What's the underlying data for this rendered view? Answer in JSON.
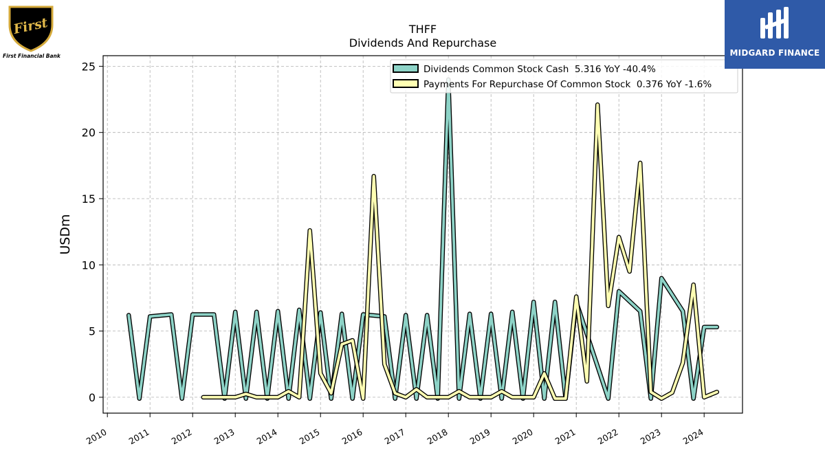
{
  "logos": {
    "left": {
      "mark_text": "First",
      "caption": "First Financial Bank"
    },
    "right": {
      "brand": "MIDGARD FINANCE",
      "icon": "midgard-monogram-icon"
    }
  },
  "chart_data": {
    "type": "line",
    "title": "THFF",
    "subtitle": "Dividends And Repurchase",
    "xlabel": "",
    "ylabel": "USDm",
    "xlim": [
      2009.9,
      2024.9
    ],
    "ylim": [
      -1.2,
      25.8
    ],
    "yticks": [
      0,
      5,
      10,
      15,
      20,
      25
    ],
    "xticks": [
      "2010",
      "2011",
      "2012",
      "2013",
      "2014",
      "2015",
      "2016",
      "2017",
      "2018",
      "2019",
      "2020",
      "2021",
      "2022",
      "2023",
      "2024"
    ],
    "grid": true,
    "legend_position": "top-right",
    "series": [
      {
        "name": "Dividends Common Stock Cash  5.316 YoY -40.4%",
        "color": "#8dd3c7",
        "x": [
          2010.5,
          2010.75,
          2011.0,
          2011.5,
          2011.75,
          2012.0,
          2012.5,
          2012.75,
          2013.0,
          2013.25,
          2013.5,
          2013.75,
          2014.0,
          2014.25,
          2014.5,
          2014.75,
          2015.0,
          2015.25,
          2015.5,
          2015.75,
          2016.0,
          2016.5,
          2016.75,
          2017.0,
          2017.25,
          2017.5,
          2017.75,
          2018.0,
          2018.25,
          2018.5,
          2018.75,
          2019.0,
          2019.25,
          2019.5,
          2019.75,
          2020.0,
          2020.25,
          2020.5,
          2020.75,
          2021.0,
          2021.75,
          2022.0,
          2022.5,
          2022.75,
          2023.0,
          2023.5,
          2023.75,
          2024.0,
          2024.3
        ],
        "y": [
          6.2,
          -0.1,
          6.1,
          6.25,
          -0.1,
          6.25,
          6.25,
          -0.1,
          6.45,
          -0.1,
          6.45,
          -0.1,
          6.5,
          -0.1,
          6.6,
          -0.1,
          6.4,
          -0.1,
          6.3,
          -0.1,
          6.25,
          6.1,
          -0.1,
          6.2,
          -0.1,
          6.2,
          -0.1,
          24.0,
          -0.1,
          6.3,
          -0.1,
          6.3,
          -0.1,
          6.45,
          -0.1,
          7.2,
          -0.1,
          7.2,
          -0.1,
          7.2,
          -0.1,
          8.0,
          6.5,
          -0.1,
          9.0,
          6.5,
          -0.1,
          5.3,
          5.3
        ]
      },
      {
        "name": "Payments For Repurchase Of Common Stock  0.376 YoY -1.6%",
        "color": "#ffffb3",
        "x": [
          2012.25,
          2013.0,
          2013.25,
          2013.5,
          2014.0,
          2014.25,
          2014.5,
          2014.75,
          2015.0,
          2015.25,
          2015.5,
          2015.75,
          2016.0,
          2016.25,
          2016.5,
          2016.75,
          2017.0,
          2017.25,
          2017.5,
          2018.0,
          2018.25,
          2018.5,
          2019.0,
          2019.25,
          2019.5,
          2020.0,
          2020.25,
          2020.5,
          2020.75,
          2021.0,
          2021.25,
          2021.5,
          2021.75,
          2022.0,
          2022.25,
          2022.5,
          2022.75,
          2023.0,
          2023.25,
          2023.5,
          2023.75,
          2024.0,
          2024.3
        ],
        "y": [
          0.0,
          0.0,
          0.25,
          0.0,
          0.0,
          0.45,
          0.0,
          12.6,
          1.8,
          0.3,
          4.0,
          4.3,
          -0.1,
          16.7,
          2.5,
          0.3,
          0.0,
          0.6,
          0.0,
          0.0,
          0.45,
          0.0,
          0.0,
          0.45,
          0.0,
          0.0,
          1.8,
          -0.1,
          -0.1,
          7.6,
          1.2,
          22.1,
          6.9,
          12.1,
          9.5,
          17.7,
          0.4,
          -0.1,
          0.35,
          2.6,
          8.5,
          0.0,
          0.4
        ]
      }
    ]
  }
}
